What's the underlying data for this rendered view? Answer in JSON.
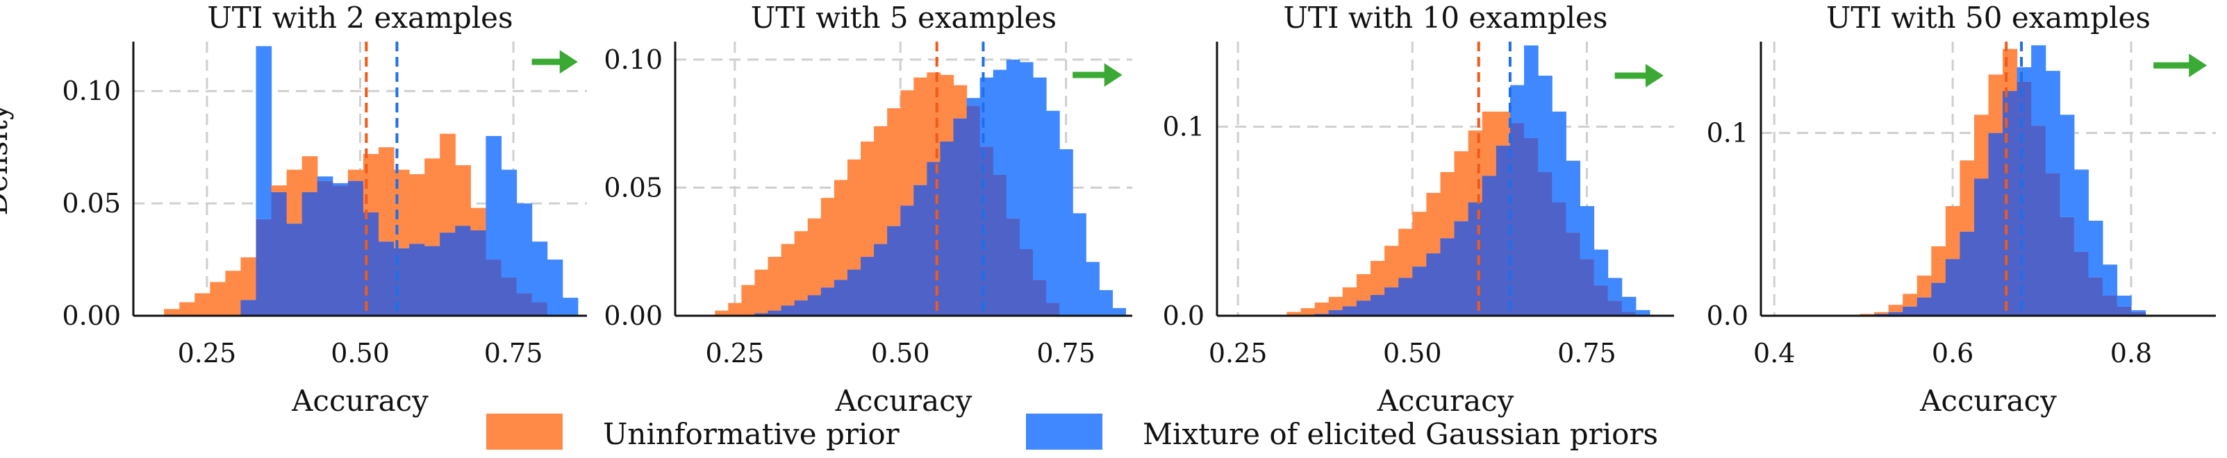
{
  "figure": {
    "ylabel": "Density"
  },
  "colors": {
    "uninformative": "#ff8a48",
    "elicited": "#3f88ff",
    "overlap": "#4e62c8",
    "grid": "#cfcfcf",
    "arrow": "#3aaa35"
  },
  "legend": {
    "items": [
      {
        "label": "Uninformative prior",
        "color": "#ff8a48"
      },
      {
        "label": "Mixture of elicited Gaussian priors",
        "color": "#3f88ff"
      }
    ]
  },
  "chart_data": [
    {
      "type": "histogram",
      "title": "UTI with 2 examples",
      "xlabel": "Accuracy",
      "ylabel": "Density",
      "xlim": [
        0.13,
        0.87
      ],
      "ylim": [
        0,
        0.122
      ],
      "xticks": [
        0.25,
        0.5,
        0.75
      ],
      "xtick_labels": [
        "0.25",
        "0.50",
        "0.75"
      ],
      "yticks": [
        0.0,
        0.05,
        0.1
      ],
      "ytick_labels": [
        "0.00",
        "0.05",
        "0.10"
      ],
      "bin_start": 0.18,
      "bin_width": 0.025,
      "series": [
        {
          "name": "Uninformative prior",
          "values": [
            0.003,
            0.006,
            0.01,
            0.015,
            0.02,
            0.026,
            0.043,
            0.058,
            0.065,
            0.071,
            0.06,
            0.058,
            0.065,
            0.072,
            0.075,
            0.065,
            0.063,
            0.07,
            0.081,
            0.067,
            0.048,
            0.025,
            0.017,
            0.01,
            0.006,
            0.0,
            0.0,
            0.0
          ]
        },
        {
          "name": "Mixture of elicited Gaussian priors",
          "values": [
            0.0,
            0.0,
            0.0,
            0.0,
            0.0,
            0.007,
            0.12,
            0.055,
            0.041,
            0.055,
            0.062,
            0.059,
            0.06,
            0.046,
            0.033,
            0.03,
            0.032,
            0.031,
            0.037,
            0.04,
            0.038,
            0.08,
            0.065,
            0.05,
            0.033,
            0.025,
            0.008,
            0.0
          ]
        }
      ],
      "mean_lines": [
        0.51,
        0.56
      ],
      "arrow_x": [
        0.78,
        0.855
      ],
      "arrow_y": 0.113
    },
    {
      "type": "histogram",
      "title": "UTI with 5 examples",
      "xlabel": "Accuracy",
      "ylabel": "",
      "xlim": [
        0.16,
        0.85
      ],
      "ylim": [
        0,
        0.107
      ],
      "xticks": [
        0.25,
        0.5,
        0.75
      ],
      "xtick_labels": [
        "0.25",
        "0.50",
        "0.75"
      ],
      "yticks": [
        0.0,
        0.05,
        0.1
      ],
      "ytick_labels": [
        "0.00",
        "0.05",
        "0.10"
      ],
      "bin_start": 0.22,
      "bin_width": 0.02,
      "series": [
        {
          "name": "Uninformative prior",
          "values": [
            0.002,
            0.005,
            0.012,
            0.018,
            0.023,
            0.028,
            0.033,
            0.038,
            0.046,
            0.053,
            0.061,
            0.068,
            0.074,
            0.081,
            0.088,
            0.093,
            0.095,
            0.094,
            0.09,
            0.082,
            0.066,
            0.055,
            0.038,
            0.026,
            0.014,
            0.005,
            0.0,
            0.0,
            0.0,
            0.0,
            0.0,
            0.0
          ]
        },
        {
          "name": "Mixture of elicited Gaussian priors",
          "values": [
            0.0,
            0.0,
            0.0,
            0.001,
            0.002,
            0.004,
            0.006,
            0.008,
            0.011,
            0.014,
            0.018,
            0.023,
            0.028,
            0.035,
            0.043,
            0.051,
            0.06,
            0.068,
            0.077,
            0.085,
            0.093,
            0.096,
            0.1,
            0.099,
            0.093,
            0.08,
            0.065,
            0.04,
            0.021,
            0.01,
            0.003,
            0.0
          ]
        }
      ],
      "mean_lines": [
        0.555,
        0.625
      ],
      "arrow_x": [
        0.76,
        0.835
      ],
      "arrow_y": 0.094
    },
    {
      "type": "histogram",
      "title": "UTI with 10 examples",
      "xlabel": "Accuracy",
      "ylabel": "",
      "xlim": [
        0.22,
        0.875
      ],
      "ylim": [
        0,
        0.145
      ],
      "xticks": [
        0.25,
        0.5,
        0.75
      ],
      "xtick_labels": [
        "0.25",
        "0.50",
        "0.75"
      ],
      "yticks": [
        0.0,
        0.1
      ],
      "ytick_labels": [
        "0.0",
        "0.1"
      ],
      "bin_start": 0.32,
      "bin_width": 0.02,
      "series": [
        {
          "name": "Uninformative prior",
          "values": [
            0.002,
            0.004,
            0.007,
            0.01,
            0.015,
            0.022,
            0.029,
            0.037,
            0.046,
            0.055,
            0.065,
            0.076,
            0.087,
            0.098,
            0.108,
            0.108,
            0.102,
            0.094,
            0.076,
            0.06,
            0.044,
            0.03,
            0.016,
            0.008,
            0.002,
            0.0
          ]
        },
        {
          "name": "Mixture of elicited Gaussian priors",
          "values": [
            0.0,
            0.0,
            0.001,
            0.003,
            0.005,
            0.008,
            0.011,
            0.015,
            0.02,
            0.026,
            0.033,
            0.041,
            0.05,
            0.06,
            0.074,
            0.09,
            0.122,
            0.143,
            0.127,
            0.108,
            0.082,
            0.058,
            0.035,
            0.02,
            0.01,
            0.003
          ]
        }
      ],
      "mean_lines": [
        0.595,
        0.64
      ],
      "arrow_x": [
        0.79,
        0.86
      ],
      "arrow_y": 0.127
    },
    {
      "type": "histogram",
      "title": "UTI with 50 examples",
      "xlabel": "Accuracy",
      "ylabel": "",
      "xlim": [
        0.385,
        0.895
      ],
      "ylim": [
        0,
        0.15
      ],
      "xticks": [
        0.4,
        0.6,
        0.8
      ],
      "xtick_labels": [
        "0.4",
        "0.6",
        "0.8"
      ],
      "yticks": [
        0.0,
        0.1
      ],
      "ytick_labels": [
        "0.0",
        "0.1"
      ],
      "bin_start": 0.48,
      "bin_width": 0.016,
      "series": [
        {
          "name": "Uninformative prior",
          "values": [
            0.0,
            0.001,
            0.002,
            0.006,
            0.012,
            0.022,
            0.038,
            0.06,
            0.085,
            0.11,
            0.132,
            0.146,
            0.128,
            0.104,
            0.078,
            0.054,
            0.035,
            0.021,
            0.011,
            0.005,
            0.002
          ]
        },
        {
          "name": "Mixture of elicited Gaussian priors",
          "values": [
            0.0,
            0.0,
            0.001,
            0.002,
            0.005,
            0.01,
            0.018,
            0.031,
            0.046,
            0.075,
            0.1,
            0.123,
            0.136,
            0.148,
            0.134,
            0.11,
            0.08,
            0.052,
            0.028,
            0.011,
            0.003
          ]
        }
      ],
      "mean_lines": [
        0.66,
        0.677
      ],
      "arrow_x": [
        0.825,
        0.885
      ],
      "arrow_y": 0.137
    }
  ]
}
